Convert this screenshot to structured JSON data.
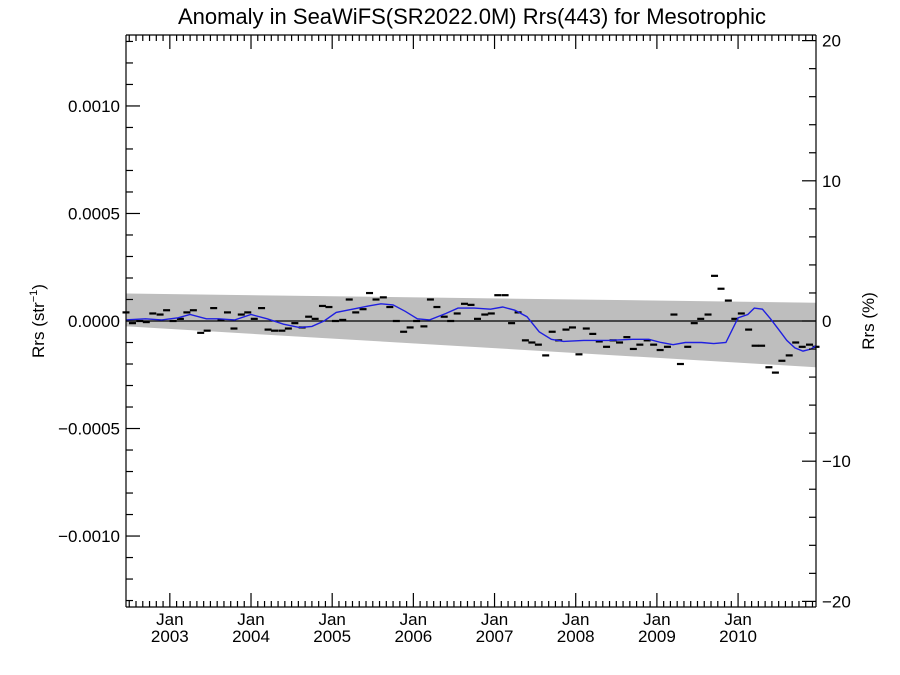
{
  "chart_data": {
    "type": "scatter",
    "title": "Anomaly in SeaWiFS(SR2022.0M) Rrs(443) for Mesotrophic",
    "ylabel_left_base": "Rrs (str",
    "ylabel_left_sup": "−1",
    "ylabel_left_end": ")",
    "ylabel_right": "Rrs (%)",
    "ylim_left": [
      -0.00133,
      0.00133
    ],
    "ylim_right": [
      -20.4,
      20.4
    ],
    "xlim": [
      2002.46,
      2010.96
    ],
    "y_ticks_left": [
      {
        "value": 0.001,
        "label": "0.0010"
      },
      {
        "value": 0.0005,
        "label": "0.0005"
      },
      {
        "value": 0.0,
        "label": "0.0000"
      },
      {
        "value": -0.0005,
        "label": "−0.0005"
      },
      {
        "value": -0.001,
        "label": "−0.0010"
      }
    ],
    "y_ticks_right": [
      {
        "value": 20,
        "label": "20"
      },
      {
        "value": 10,
        "label": "10"
      },
      {
        "value": 0,
        "label": "0"
      },
      {
        "value": -10,
        "label": "−10"
      },
      {
        "value": -20,
        "label": "−20"
      }
    ],
    "x_ticks": [
      {
        "value": 2003.0,
        "month": "Jan",
        "year": "2003"
      },
      {
        "value": 2004.0,
        "month": "Jan",
        "year": "2004"
      },
      {
        "value": 2005.0,
        "month": "Jan",
        "year": "2005"
      },
      {
        "value": 2006.0,
        "month": "Jan",
        "year": "2006"
      },
      {
        "value": 2007.0,
        "month": "Jan",
        "year": "2007"
      },
      {
        "value": 2008.0,
        "month": "Jan",
        "year": "2008"
      },
      {
        "value": 2009.0,
        "month": "Jan",
        "year": "2009"
      },
      {
        "value": 2010.0,
        "month": "Jan",
        "year": "2010"
      }
    ],
    "band": {
      "x": [
        2002.46,
        2010.96
      ],
      "upper": [
        0.000128,
        8.5e-05
      ],
      "lower": [
        -2.5e-05,
        -0.000215
      ]
    },
    "monthly_anomaly": {
      "x": [
        2002.46,
        2002.54,
        2002.63,
        2002.71,
        2002.79,
        2002.88,
        2002.96,
        2003.04,
        2003.13,
        2003.21,
        2003.29,
        2003.38,
        2003.46,
        2003.54,
        2003.63,
        2003.71,
        2003.79,
        2003.88,
        2003.96,
        2004.04,
        2004.13,
        2004.21,
        2004.29,
        2004.38,
        2004.46,
        2004.54,
        2004.63,
        2004.71,
        2004.79,
        2004.88,
        2004.96,
        2005.04,
        2005.13,
        2005.21,
        2005.29,
        2005.38,
        2005.46,
        2005.54,
        2005.63,
        2005.71,
        2005.79,
        2005.88,
        2005.96,
        2006.04,
        2006.13,
        2006.21,
        2006.29,
        2006.38,
        2006.46,
        2006.54,
        2006.63,
        2006.71,
        2006.79,
        2006.88,
        2006.96,
        2007.04,
        2007.13,
        2007.21,
        2007.29,
        2007.38,
        2007.46,
        2007.54,
        2007.63,
        2007.71,
        2007.79,
        2007.88,
        2007.96,
        2008.04,
        2008.13,
        2008.21,
        2008.29,
        2008.38,
        2008.46,
        2008.54,
        2008.63,
        2008.71,
        2008.79,
        2008.88,
        2008.96,
        2009.04,
        2009.13,
        2009.21,
        2009.29,
        2009.38,
        2009.46,
        2009.54,
        2009.63,
        2009.71,
        2009.79,
        2009.88,
        2009.96,
        2010.04,
        2010.13,
        2010.21,
        2010.29,
        2010.38,
        2010.46,
        2010.54,
        2010.63,
        2010.71,
        2010.79,
        2010.88,
        2010.96
      ],
      "y": [
        4e-05,
        -1e-05,
        0.0,
        -5e-06,
        3.5e-05,
        3e-05,
        5e-05,
        0.0,
        1e-05,
        4e-05,
        5e-05,
        -5.5e-05,
        -4.5e-05,
        6e-05,
        5e-06,
        4e-05,
        -3.5e-05,
        3e-05,
        4e-05,
        1e-05,
        6e-05,
        -4e-05,
        -4.5e-05,
        -4.5e-05,
        -3.5e-05,
        -1e-05,
        -3e-05,
        2e-05,
        1e-05,
        7e-05,
        6.5e-05,
        0.0,
        5e-06,
        0.0001,
        4e-05,
        5.5e-05,
        0.00013,
        0.0001,
        0.00011,
        6.5e-05,
        0.0,
        -5e-05,
        -3e-05,
        0.0,
        -2.5e-05,
        0.0001,
        6.5e-05,
        2e-05,
        0.0,
        3.5e-05,
        8e-05,
        7.5e-05,
        1e-05,
        3e-05,
        3.5e-05,
        0.00012,
        0.00012,
        -1e-05,
        4e-05,
        -9e-05,
        -0.0001,
        -0.00011,
        -0.00016,
        -5e-05,
        -9e-05,
        -4e-05,
        -3e-05,
        -0.000155,
        -3.5e-05,
        -6e-05,
        -9.5e-05,
        -0.00012,
        -9e-05,
        -0.0001,
        -7.5e-05,
        -0.00013,
        -0.00011,
        -9e-05,
        -0.00011,
        -0.000135,
        -0.00012,
        3e-05,
        -0.0002,
        -0.00012,
        -1e-05,
        1e-05,
        3e-05,
        0.00021,
        0.00015,
        9.5e-05,
        1e-05,
        3.5e-05,
        -4e-05,
        -0.000115,
        -0.000115,
        -0.000215,
        -0.00024,
        -0.000185,
        -0.00016,
        -0.0001,
        -0.00012,
        -0.00011,
        -0.00012
      ]
    },
    "smoothed": {
      "x": [
        2002.46,
        2002.7,
        2002.9,
        2003.1,
        2003.25,
        2003.45,
        2003.6,
        2003.8,
        2004.0,
        2004.2,
        2004.4,
        2004.6,
        2004.75,
        2004.9,
        2005.05,
        2005.25,
        2005.45,
        2005.6,
        2005.75,
        2005.9,
        2006.05,
        2006.2,
        2006.4,
        2006.55,
        2006.75,
        2006.95,
        2007.1,
        2007.25,
        2007.4,
        2007.55,
        2007.7,
        2007.85,
        2008.1,
        2008.4,
        2008.7,
        2008.9,
        2009.05,
        2009.2,
        2009.35,
        2009.55,
        2009.7,
        2009.85,
        2010.0,
        2010.12,
        2010.2,
        2010.3,
        2010.4,
        2010.5,
        2010.6,
        2010.7,
        2010.8,
        2010.9,
        2010.96
      ],
      "y": [
        5e-06,
        1e-05,
        5e-06,
        1.5e-05,
        3e-05,
        1e-05,
        1e-05,
        5e-06,
        3e-05,
        1e-05,
        -1.5e-05,
        -3e-05,
        -2.5e-05,
        0.0,
        4e-05,
        5.5e-05,
        7e-05,
        8e-05,
        7.5e-05,
        4.5e-05,
        1e-05,
        5e-06,
        3.5e-05,
        6e-05,
        6e-05,
        5.5e-05,
        6.5e-05,
        5e-05,
        2e-05,
        -5e-05,
        -8.5e-05,
        -9.5e-05,
        -9e-05,
        -9e-05,
        -8.5e-05,
        -8.5e-05,
        -0.0001,
        -0.00011,
        -0.0001,
        -0.0001,
        -0.000105,
        -0.0001,
        1.5e-05,
        3e-05,
        6e-05,
        5.5e-05,
        1e-05,
        -4e-05,
        -9e-05,
        -0.000125,
        -0.00014,
        -0.00013,
        -0.000115
      ]
    }
  }
}
